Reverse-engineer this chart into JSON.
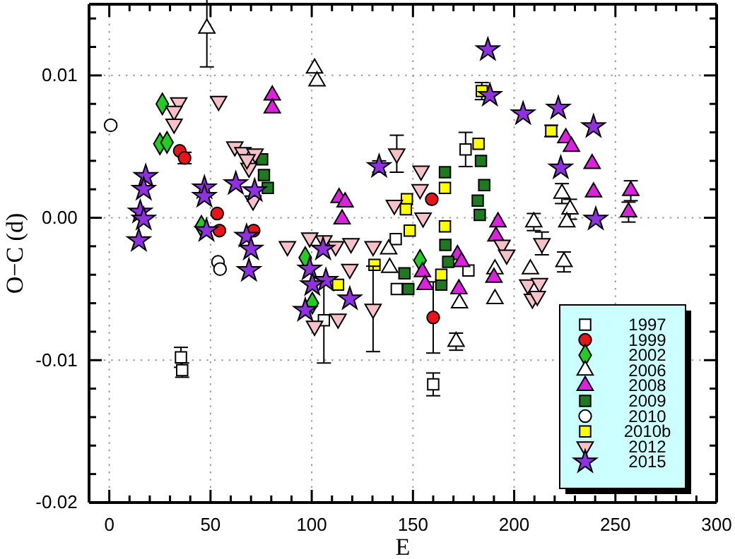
{
  "chart_data": {
    "type": "scatter",
    "xlabel": "E",
    "ylabel": "O−C (d)",
    "xlim": [
      -10,
      300
    ],
    "ylim": [
      -0.02,
      0.015
    ],
    "xticks": [
      0,
      {
        "value": 10,
        "label": null
      },
      {
        "value": 20,
        "label": null
      },
      {
        "value": 30,
        "label": null
      },
      {
        "value": 40,
        "label": null
      },
      50,
      {
        "value": 60,
        "label": null
      },
      {
        "value": 70,
        "label": null
      },
      {
        "value": 80,
        "label": null
      },
      {
        "value": 90,
        "label": null
      },
      100,
      {
        "value": 110,
        "label": null
      },
      {
        "value": 120,
        "label": null
      },
      {
        "value": 130,
        "label": null
      },
      {
        "value": 140,
        "label": null
      },
      150,
      {
        "value": 160,
        "label": null
      },
      {
        "value": 170,
        "label": null
      },
      {
        "value": 180,
        "label": null
      },
      {
        "value": 190,
        "label": null
      },
      200,
      {
        "value": 210,
        "label": null
      },
      {
        "value": 220,
        "label": null
      },
      {
        "value": 230,
        "label": null
      },
      {
        "value": 240,
        "label": null
      },
      250,
      {
        "value": 260,
        "label": null
      },
      {
        "value": 270,
        "label": null
      },
      {
        "value": 280,
        "label": null
      },
      {
        "value": 290,
        "label": null
      },
      300
    ],
    "yticks": [
      -0.02,
      {
        "value": -0.018,
        "label": null
      },
      {
        "value": -0.016,
        "label": null
      },
      {
        "value": -0.014,
        "label": null
      },
      {
        "value": -0.012,
        "label": null
      },
      -0.01,
      {
        "value": -0.008,
        "label": null
      },
      {
        "value": -0.006,
        "label": null
      },
      {
        "value": -0.004,
        "label": null
      },
      {
        "value": -0.002,
        "label": null
      },
      {
        "value": 0,
        "label": "0.00"
      },
      {
        "value": 0.002,
        "label": null
      },
      {
        "value": 0.004,
        "label": null
      },
      {
        "value": 0.006,
        "label": null
      },
      {
        "value": 0.008,
        "label": null
      },
      0.01,
      {
        "value": 0.012,
        "label": null
      },
      {
        "value": 0.014,
        "label": null
      }
    ],
    "grid": true,
    "legend": "bottom right",
    "series": [
      {
        "name": "1997",
        "color": "#ffffff",
        "marker": "square",
        "x": [
          35.4,
          36,
          160,
          176,
          106,
          141.5,
          142,
          177.4
        ],
        "values": [
          -0.0098,
          -0.0107,
          -0.0117,
          0.0048,
          -0.0072,
          -0.0015,
          -0.005,
          -0.0037
        ],
        "errors": [
          0.0007,
          0.0005,
          0.0008,
          0.0012,
          0.003,
          null,
          null,
          null
        ]
      },
      {
        "name": "1999",
        "color": "#e8141a",
        "marker": "circle",
        "x": [
          34.8,
          37.2,
          53.3,
          54.4,
          71.3,
          159.3,
          160
        ],
        "values": [
          0.0047,
          0.0042,
          0.0003,
          -0.0009,
          -0.0009,
          0.0013,
          -0.007
        ],
        "errors": [
          null,
          0.0004,
          null,
          null,
          null,
          null,
          0.0025
        ]
      },
      {
        "name": "2002",
        "color": "#22cc22",
        "marker": "diamond",
        "x": [
          26.2,
          25,
          28.5,
          45.5,
          153.5,
          100.3,
          96.8
        ],
        "values": [
          0.008,
          0.0052,
          0.0053,
          -0.0006,
          -0.003,
          -0.006,
          -0.0028
        ]
      },
      {
        "name": "2006",
        "color": "#ffffff",
        "marker": "triangle",
        "x": [
          48.2,
          101.4,
          102.6,
          138,
          138.5,
          190.5,
          190.5,
          173,
          223.6,
          227.6,
          226,
          224.6,
          209.7,
          208,
          171.3
        ],
        "values": [
          0.0133,
          0.0105,
          0.0096,
          -0.0022,
          -0.0035,
          -0.0036,
          -0.0057,
          -0.006,
          0.0017,
          0.0006,
          -0.0003,
          -0.0031,
          -0.0003,
          -0.0036,
          -0.0087
        ],
        "errors": [
          0.0027,
          null,
          null,
          null,
          null,
          null,
          null,
          null,
          0.0007,
          0.0007,
          null,
          0.0007,
          0.0006,
          null,
          0.0006
        ]
      },
      {
        "name": "2008",
        "color": "#e020e0",
        "marker": "triangle",
        "x": [
          80.5,
          80.5,
          113.5,
          116.5,
          115,
          192,
          191,
          172,
          174,
          154.7,
          156,
          172.7,
          190,
          225.5,
          228.3,
          238.5,
          239.2,
          257.6,
          256.5
        ],
        "values": [
          0.0086,
          0.0077,
          0.0014,
          0.0011,
          -0.0001,
          -0.0003,
          -0.0013,
          -0.0026,
          -0.0031,
          -0.0038,
          -0.0047,
          -0.005,
          -0.0042,
          0.0056,
          0.005,
          0.0038,
          0.0018,
          0.0019,
          0.0004
        ],
        "errors": [
          null,
          null,
          null,
          null,
          null,
          null,
          null,
          null,
          null,
          null,
          null,
          null,
          null,
          null,
          null,
          null,
          null,
          0.0007,
          0.0007
        ]
      },
      {
        "name": "2009",
        "color": "#1e7a1e",
        "marker": "square",
        "x": [
          75.5,
          76.4,
          78.3,
          183.6,
          185.2,
          182,
          183,
          165.8,
          166,
          167.4,
          145.8,
          147.7,
          164
        ],
        "values": [
          0.0041,
          0.003,
          0.0021,
          0.004,
          0.0023,
          0.0012,
          0.0002,
          0.0032,
          -0.0019,
          -0.0031,
          -0.0039,
          -0.005,
          -0.0047
        ]
      },
      {
        "name": "2010",
        "color": "#ffffff",
        "marker": "circle",
        "x": [
          0.7,
          53.7,
          54.7
        ],
        "values": [
          0.0065,
          -0.0031,
          -0.0036
        ]
      },
      {
        "name": "2010b",
        "color": "#ffff00",
        "marker": "square",
        "x": [
          184,
          182.4,
          147,
          146.5,
          165.8,
          165.8,
          148.4,
          113,
          131,
          164,
          218.3
        ],
        "values": [
          0.0089,
          0.0052,
          0.0013,
          0.0006,
          0.0021,
          -0.0006,
          -0.0009,
          -0.0047,
          -0.0033,
          -0.004,
          0.0061
        ],
        "errors": [
          0.0006,
          null,
          null,
          null,
          null,
          null,
          null,
          null,
          null,
          null,
          0.0004
        ]
      },
      {
        "name": "2012",
        "color": "#f8c0c8",
        "marker": "triangle-down",
        "x": [
          34.3,
          32,
          32,
          54,
          62,
          66,
          72,
          69,
          71,
          68,
          88,
          142,
          154,
          153.5,
          140.8,
          155,
          130.3,
          130.3,
          118.8,
          119.4,
          111.8,
          106,
          99,
          194,
          196.3,
          113,
          101.4,
          213.7,
          206.7,
          212.5,
          209,
          211.4
        ],
        "values": [
          0.0081,
          0.0075,
          0.0066,
          0.0082,
          0.005,
          0.0046,
          0.0045,
          0.0035,
          0.0012,
          0.0041,
          -0.002,
          0.0045,
          0.0033,
          0.002,
          0.0009,
          0,
          -0.002,
          -0.0064,
          -0.0036,
          -0.0018,
          -0.002,
          -0.0016,
          -0.0014,
          -0.0019,
          -0.0026,
          -0.0071,
          -0.0076,
          -0.0018,
          -0.0047,
          -0.0046,
          -0.0057,
          -0.0055
        ],
        "errors": [
          null,
          null,
          null,
          null,
          null,
          null,
          null,
          null,
          null,
          null,
          null,
          0.0013,
          null,
          null,
          null,
          null,
          null,
          0.003,
          null,
          null,
          null,
          null,
          null,
          null,
          null,
          null,
          null,
          0.0008,
          null,
          null,
          null,
          null
        ]
      },
      {
        "name": "2015",
        "color": "#9030e0",
        "marker": "star",
        "x": [
          18,
          17,
          15.3,
          17,
          14.6,
          47,
          47,
          48,
          62.5,
          71.8,
          67.8,
          70,
          69,
          133.3,
          118.8,
          105.6,
          99,
          107,
          100.3,
          96.8,
          187,
          188,
          204.4,
          221.8,
          239.2,
          223,
          240.3
        ],
        "values": [
          0.0029,
          0.002,
          0.0004,
          -0.0001,
          -0.0016,
          0.0021,
          0.0015,
          -0.0009,
          0.0024,
          0.0019,
          -0.0013,
          -0.0022,
          -0.0037,
          0.0036,
          -0.0057,
          -0.0022,
          -0.0036,
          -0.0044,
          -0.0047,
          -0.0065,
          0.0118,
          0.0086,
          0.0073,
          0.0077,
          0.0064,
          0.0035,
          -0.0001
        ],
        "errors": [
          null,
          null,
          null,
          null,
          null,
          null,
          null,
          null,
          null,
          null,
          null,
          null,
          null,
          0.0004,
          null,
          null,
          null,
          null,
          null,
          null,
          null,
          null,
          null,
          null,
          null,
          null,
          null
        ]
      }
    ]
  }
}
